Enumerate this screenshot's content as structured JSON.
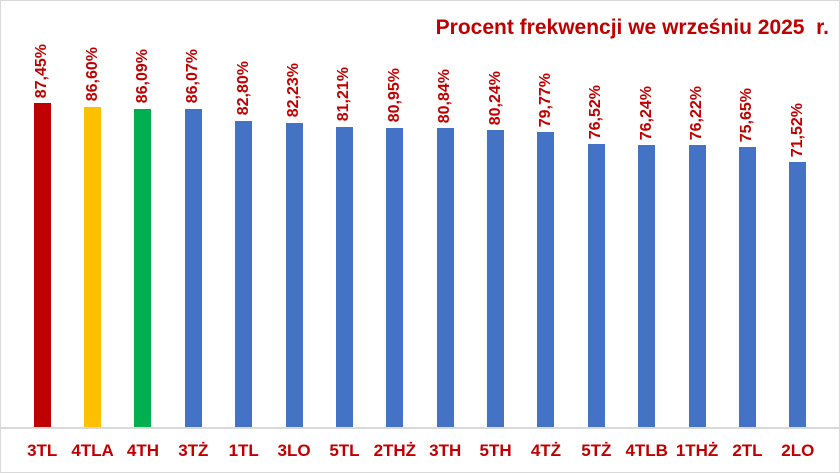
{
  "chart_data": {
    "type": "bar",
    "title": "Procent frekwencji we wrześniu 2025  r.",
    "categories": [
      "3TL",
      "4TLA",
      "4TH",
      "3TŻ",
      "1TL",
      "3LO",
      "5TL",
      "2THŻ",
      "3TH",
      "5TH",
      "4TŻ",
      "5TŻ",
      "4TLB",
      "1THŻ",
      "2TL",
      "2LO"
    ],
    "values": [
      87.45,
      86.6,
      86.09,
      86.07,
      82.8,
      82.23,
      81.21,
      80.95,
      80.84,
      80.24,
      79.77,
      76.52,
      76.24,
      76.22,
      75.65,
      71.52
    ],
    "value_labels": [
      "87,45%",
      "86,60%",
      "86,09%",
      "86,07%",
      "82,80%",
      "82,23%",
      "81,21%",
      "80,95%",
      "80,84%",
      "80,24%",
      "79,77%",
      "76,52%",
      "76,24%",
      "76,22%",
      "75,65%",
      "71,52%"
    ],
    "bar_colors": [
      "#c00000",
      "#ffc000",
      "#00b050",
      "#4472c4",
      "#4472c4",
      "#4472c4",
      "#4472c4",
      "#4472c4",
      "#4472c4",
      "#4472c4",
      "#4472c4",
      "#4472c4",
      "#4472c4",
      "#4472c4",
      "#4472c4",
      "#4472c4"
    ],
    "xlabel": "",
    "ylabel": "",
    "ylim": [
      0,
      100
    ],
    "grid": false,
    "legend": null,
    "value_label_rotation": 90,
    "colors": {
      "title_text": "#c00000",
      "value_label_text": "#c00000",
      "category_label_text": "#c00000",
      "axis_line": "#d9d9d9",
      "chart_border": "#d9d9d9",
      "background": "#ffffff"
    }
  }
}
